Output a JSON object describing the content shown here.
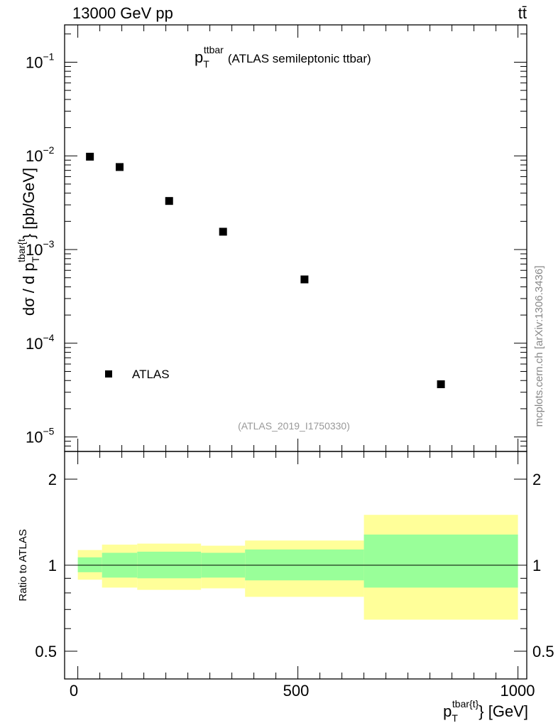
{
  "header": {
    "left_label": "13000 GeV pp",
    "right_label": "tt̄"
  },
  "top_plot": {
    "title_main": "p",
    "title_sub": "T",
    "title_sup": "ttbar",
    "title_rest": "(ATLAS semileptonic ttbar)",
    "ylabel_main": "dσ / d p",
    "ylabel_sub": "T",
    "ylabel_sup": "tbar{t",
    "ylabel_rest": "} [pb/GeV]",
    "analysis_id": "(ATLAS_2019_I1750330)",
    "legend_label": "ATLAS",
    "ytick_labels": [
      {
        "base": "10",
        "exp": "−1"
      },
      {
        "base": "10",
        "exp": "−2"
      },
      {
        "base": "10",
        "exp": "−3"
      },
      {
        "base": "10",
        "exp": "−4"
      },
      {
        "base": "10",
        "exp": "−5"
      }
    ]
  },
  "bottom_plot": {
    "ylabel": "Ratio to ATLAS",
    "ytick_labels": [
      "2",
      "1",
      "0.5"
    ],
    "xtick_labels": [
      "0",
      "500",
      "1000"
    ],
    "xlabel_main": "p",
    "xlabel_sub": "T",
    "xlabel_sup": "tbar{t}",
    "xlabel_rest": "} [GeV]"
  },
  "watermark": "mcplots.cern.ch [arXiv:1306.3436]",
  "colors": {
    "marker": "#000000",
    "band_inner": "#99ff99",
    "band_outer": "#ffff99"
  },
  "chart_data": [
    {
      "type": "scatter",
      "yscale": "log",
      "ylim": [
        7e-06,
        0.25
      ],
      "xlim": [
        -30,
        1020
      ],
      "series": [
        {
          "name": "ATLAS",
          "x": [
            27.5,
            95,
            207.5,
            330,
            515,
            825
          ],
          "y": [
            0.0098,
            0.0076,
            0.0033,
            0.00155,
            0.00048,
            3.65e-05
          ]
        }
      ]
    },
    {
      "type": "area",
      "yscale": "log",
      "ylim": [
        0.4,
        2.5
      ],
      "xlim": [
        -30,
        1020
      ],
      "bins": [
        {
          "x0": 0,
          "x1": 55,
          "inner": [
            0.945,
            1.065
          ],
          "outer": [
            0.89,
            1.13
          ]
        },
        {
          "x0": 55,
          "x1": 135,
          "inner": [
            0.905,
            1.105
          ],
          "outer": [
            0.835,
            1.18
          ]
        },
        {
          "x0": 135,
          "x1": 280,
          "inner": [
            0.9,
            1.115
          ],
          "outer": [
            0.82,
            1.19
          ]
        },
        {
          "x0": 280,
          "x1": 380,
          "inner": [
            0.905,
            1.105
          ],
          "outer": [
            0.83,
            1.17
          ]
        },
        {
          "x0": 380,
          "x1": 650,
          "inner": [
            0.885,
            1.135
          ],
          "outer": [
            0.775,
            1.22
          ]
        },
        {
          "x0": 650,
          "x1": 1000,
          "inner": [
            0.835,
            1.28
          ],
          "outer": [
            0.645,
            1.5
          ]
        }
      ],
      "reference": 1
    }
  ]
}
